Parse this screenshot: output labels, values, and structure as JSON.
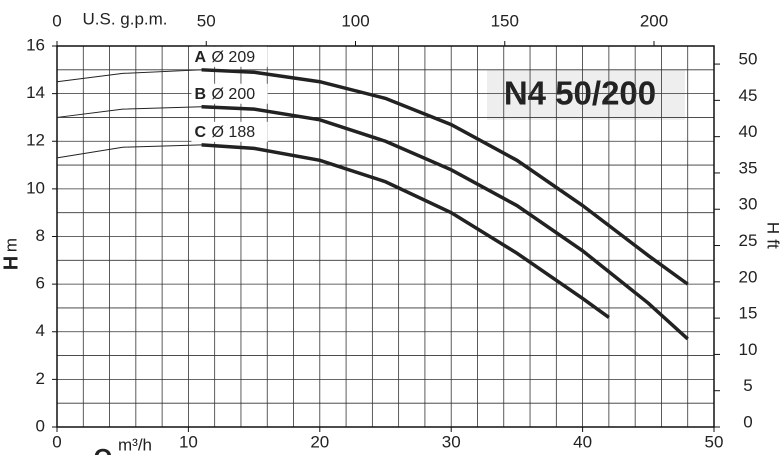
{
  "chart_data": {
    "type": "line",
    "title": "N4 50/200",
    "x_label": "Q",
    "x_unit": "m³/h",
    "x2_label": "U.S. g.p.m.",
    "y_label": "H",
    "y_unit": "m",
    "y2_label": "H",
    "y2_unit": "ft",
    "xlim": [
      0,
      50
    ],
    "xticks": [
      0,
      10,
      20,
      30,
      40,
      50
    ],
    "ylim": [
      0,
      16
    ],
    "yticks": [
      0,
      2,
      4,
      6,
      8,
      10,
      12,
      14,
      16
    ],
    "x2lim": [
      0,
      220.1
    ],
    "x2ticks": [
      0,
      50,
      100,
      150,
      200
    ],
    "y2lim": [
      0,
      52.49
    ],
    "y2ticks": [
      0,
      5,
      10,
      15,
      20,
      25,
      30,
      35,
      40,
      45,
      50
    ],
    "grid": true,
    "minor_grid": {
      "x": 2,
      "y": 1
    },
    "series": [
      {
        "name": "A",
        "diameter": "Ø 209",
        "color": "#222222",
        "x": [
          11,
          15,
          20,
          25,
          30,
          35,
          40,
          45,
          48
        ],
        "values": [
          15.0,
          14.9,
          14.5,
          13.8,
          12.7,
          11.2,
          9.3,
          7.2,
          6.0
        ],
        "extension": {
          "x": [
            0,
            5,
            11
          ],
          "values": [
            14.5,
            14.85,
            15.0
          ]
        }
      },
      {
        "name": "B",
        "diameter": "Ø 200",
        "color": "#222222",
        "x": [
          11,
          15,
          20,
          25,
          30,
          35,
          40,
          45,
          48
        ],
        "values": [
          13.45,
          13.35,
          12.9,
          12.0,
          10.8,
          9.3,
          7.4,
          5.2,
          3.7
        ],
        "extension": {
          "x": [
            0,
            5,
            11
          ],
          "values": [
            13.0,
            13.35,
            13.45
          ]
        }
      },
      {
        "name": "C",
        "diameter": "Ø 188",
        "color": "#222222",
        "x": [
          11,
          15,
          20,
          25,
          30,
          35,
          40,
          42
        ],
        "values": [
          11.85,
          11.7,
          11.2,
          10.3,
          9.0,
          7.3,
          5.4,
          4.6
        ],
        "extension": {
          "x": [
            0,
            5,
            11
          ],
          "values": [
            11.3,
            11.75,
            11.85
          ]
        }
      }
    ]
  }
}
